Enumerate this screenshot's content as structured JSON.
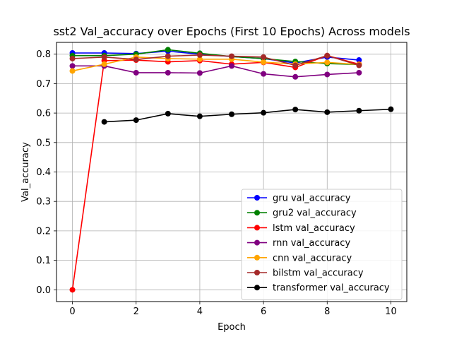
{
  "chart_data": {
    "type": "line",
    "title": "sst2 Val_accuracy over Epochs (First 10 Epochs) Across models",
    "xlabel": "Epoch",
    "ylabel": "Val_accuracy",
    "xlim": [
      -0.5,
      10.5
    ],
    "ylim": [
      -0.04,
      0.84
    ],
    "xticks": [
      0,
      2,
      4,
      6,
      8,
      10
    ],
    "yticks": [
      0.0,
      0.1,
      0.2,
      0.3,
      0.4,
      0.5,
      0.6,
      0.7,
      0.8
    ],
    "grid": true,
    "legend_position": "lower-right",
    "series": [
      {
        "name": "gru val_accuracy",
        "color": "#0000ff",
        "x": [
          0,
          1,
          2,
          3,
          4,
          5,
          6,
          7,
          8,
          9
        ],
        "y": [
          0.804,
          0.804,
          0.802,
          0.81,
          0.8,
          0.792,
          0.785,
          0.77,
          0.79,
          0.78
        ]
      },
      {
        "name": "gru2 val_accuracy",
        "color": "#008000",
        "x": [
          0,
          1,
          2,
          3,
          4,
          5,
          6,
          7,
          8,
          9
        ],
        "y": [
          0.795,
          0.795,
          0.8,
          0.815,
          0.803,
          0.792,
          0.785,
          0.775,
          0.768,
          0.765
        ]
      },
      {
        "name": "lstm val_accuracy",
        "color": "#ff0000",
        "x": [
          0,
          1,
          2,
          3,
          4,
          5,
          6,
          7,
          8,
          9
        ],
        "y": [
          0.0,
          0.778,
          0.78,
          0.774,
          0.778,
          0.766,
          0.772,
          0.755,
          0.795,
          0.766
        ]
      },
      {
        "name": "rnn val_accuracy",
        "color": "#800080",
        "x": [
          0,
          1,
          2,
          3,
          4,
          5,
          6,
          7,
          8,
          9
        ],
        "y": [
          0.76,
          0.76,
          0.737,
          0.737,
          0.736,
          0.76,
          0.733,
          0.723,
          0.731,
          0.737
        ]
      },
      {
        "name": "cnn val_accuracy",
        "color": "#ffa500",
        "x": [
          0,
          1,
          2,
          3,
          4,
          5,
          6,
          7,
          8,
          9
        ],
        "y": [
          0.743,
          0.766,
          0.79,
          0.785,
          0.783,
          0.783,
          0.773,
          0.766,
          0.772,
          0.765
        ]
      },
      {
        "name": "bilstm val_accuracy",
        "color": "#a52a2a",
        "x": [
          0,
          1,
          2,
          3,
          4,
          5,
          6,
          7,
          8,
          9
        ],
        "y": [
          0.785,
          0.79,
          0.782,
          0.793,
          0.797,
          0.793,
          0.79,
          0.762,
          0.795,
          0.762
        ]
      },
      {
        "name": "transformer val_accuracy",
        "color": "#000000",
        "x": [
          1,
          2,
          3,
          4,
          5,
          6,
          7,
          8,
          9,
          10
        ],
        "y": [
          0.57,
          0.576,
          0.598,
          0.589,
          0.596,
          0.601,
          0.612,
          0.603,
          0.608,
          0.613
        ]
      }
    ]
  }
}
